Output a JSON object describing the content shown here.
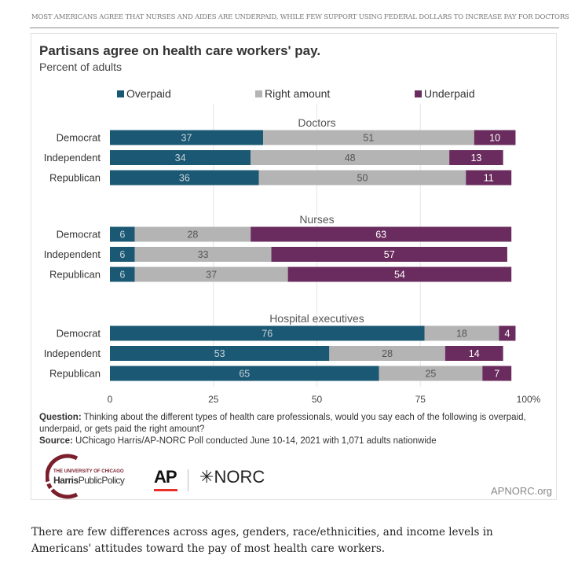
{
  "kicker": "MOST AMERICANS AGREE THAT NURSES AND AIDES ARE UNDERPAID, WHILE FEW SUPPORT USING FEDERAL DOLLARS TO INCREASE PAY FOR DOCTORS",
  "colors": {
    "overpaid": "#1b5873",
    "right": "#b4b4b4",
    "underpaid": "#6a2c5e"
  },
  "chart_data": {
    "type": "bar",
    "orientation": "horizontal",
    "stacked": true,
    "title": "Partisans agree on health care workers' pay.",
    "subtitle": "Percent of adults",
    "legend": [
      "Overpaid",
      "Right amount",
      "Underpaid"
    ],
    "xticks": [
      "0",
      "25",
      "50",
      "75",
      "100%"
    ],
    "xlim": [
      0,
      100
    ],
    "groups": [
      {
        "name": "Doctors",
        "rows": [
          {
            "label": "Democrat",
            "values": [
              37,
              51,
              10
            ]
          },
          {
            "label": "Independent",
            "values": [
              34,
              48,
              13
            ]
          },
          {
            "label": "Republican",
            "values": [
              36,
              50,
              11
            ]
          }
        ]
      },
      {
        "name": "Nurses",
        "rows": [
          {
            "label": "Democrat",
            "values": [
              6,
              28,
              63
            ]
          },
          {
            "label": "Independent",
            "values": [
              6,
              33,
              57
            ]
          },
          {
            "label": "Republican",
            "values": [
              6,
              37,
              54
            ]
          }
        ]
      },
      {
        "name": "Hospital executives",
        "rows": [
          {
            "label": "Democrat",
            "values": [
              76,
              18,
              4
            ]
          },
          {
            "label": "Independent",
            "values": [
              53,
              28,
              14
            ]
          },
          {
            "label": "Republican",
            "values": [
              65,
              25,
              7
            ]
          }
        ]
      }
    ]
  },
  "note": {
    "q_label": "Question:",
    "q_text": "Thinking about the different types of health care professionals, would you say each of the following is overpaid, underpaid,  or gets paid the right amount?",
    "s_label": "Source:",
    "s_text": "UChicago Harris/AP-NORC Poll conducted June 10-14, 2021 with 1,071 adults nationwide"
  },
  "logos": {
    "harris_top": "THE UNIVERSITY OF CHICAGO",
    "harris_bold": "Harris",
    "harris_rest": "PublicPolicy",
    "ap": "AP",
    "norc": "NORC",
    "site": "APNORC.org"
  },
  "footer": "There are few differences across ages, genders, race/ethnicities, and income levels in Americans' attitudes toward the pay of most health care workers."
}
